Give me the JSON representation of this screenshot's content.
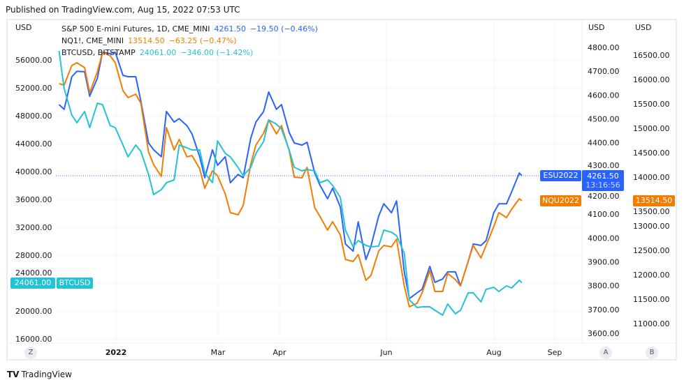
{
  "published": "Published on TradingView.com, Aug 15, 2022 07:53 UTC",
  "axis_units": {
    "left": "USD",
    "middle": "USD",
    "right": "USD"
  },
  "legend": [
    {
      "name": "S&P 500 E-mini Futures, 1D, CME_MINI",
      "price": "4261.50",
      "change": "−19.50 (−0.46%)",
      "color": "#2962ff"
    },
    {
      "name": "NQ1!, CME_MINI",
      "price": "13514.50",
      "change": "−63.25 (−0.47%)",
      "color": "#f57c00"
    },
    {
      "name": "BTCUSD, BITSTAMP",
      "price": "24061.00",
      "change": "−346.00 (−1.42%)",
      "color": "#22c3d6"
    }
  ],
  "price_tags": {
    "es_symbol": "ESU2022",
    "es_price": "4261.50",
    "es_countdown": "13:16:56",
    "nq_symbol": "NQU2022",
    "nq_price": "13514.50",
    "btc_price": "24061.00",
    "btc_symbol": "BTCUSD"
  },
  "scale_buttons": {
    "left": "Z",
    "middle": "A",
    "right": "B"
  },
  "footer": {
    "logo": "17",
    "brand": "TradingView"
  },
  "chart_data": {
    "type": "line",
    "grid": true,
    "legend_position": "top-left",
    "x_ticks": [
      "2022",
      "Mar",
      "Apr",
      "Jun",
      "Aug",
      "Sep"
    ],
    "axes": {
      "left": {
        "series": "BTCUSD",
        "range": [
          14000,
          58000
        ],
        "ticks": [
          "56000.00",
          "52000.00",
          "48000.00",
          "44000.00",
          "40000.00",
          "36000.00",
          "32000.00",
          "28000.00",
          "24000.00",
          "20000.00",
          "16000.00"
        ]
      },
      "middle": {
        "series": "ES",
        "range": [
          3570,
          4830
        ],
        "ticks": [
          "4800.00",
          "4700.00",
          "4600.00",
          "4500.00",
          "4400.00",
          "4300.00",
          "4200.00",
          "4100.00",
          "4000.00",
          "3900.00",
          "3800.00",
          "3700.00",
          "3600.00"
        ]
      },
      "right": {
        "series": "NQ",
        "range": [
          10600,
          16900
        ],
        "ticks": [
          "16500.00",
          "16000.00",
          "15500.00",
          "15000.00",
          "14500.00",
          "14000.00",
          "13500.00",
          "13000.00",
          "12500.00",
          "12000.00",
          "11500.00",
          "11000.00"
        ]
      }
    },
    "x": [
      "2021-12-02",
      "2021-12-06",
      "2021-12-09",
      "2021-12-13",
      "2021-12-16",
      "2021-12-20",
      "2021-12-23",
      "2021-12-27",
      "2021-12-30",
      "2022-01-03",
      "2022-01-06",
      "2022-01-10",
      "2022-01-13",
      "2022-01-17",
      "2022-01-20",
      "2022-01-24",
      "2022-01-27",
      "2022-01-31",
      "2022-02-03",
      "2022-02-07",
      "2022-02-10",
      "2022-02-14",
      "2022-02-17",
      "2022-02-21",
      "2022-02-24",
      "2022-02-28",
      "2022-03-03",
      "2022-03-07",
      "2022-03-10",
      "2022-03-14",
      "2022-03-17",
      "2022-03-21",
      "2022-03-24",
      "2022-03-28",
      "2022-03-31",
      "2022-04-04",
      "2022-04-07",
      "2022-04-11",
      "2022-04-14",
      "2022-04-18",
      "2022-04-21",
      "2022-04-25",
      "2022-04-28",
      "2022-05-02",
      "2022-05-05",
      "2022-05-09",
      "2022-05-12",
      "2022-05-16",
      "2022-05-19",
      "2022-05-23",
      "2022-05-26",
      "2022-05-30",
      "2022-06-02",
      "2022-06-06",
      "2022-06-09",
      "2022-06-13",
      "2022-06-16",
      "2022-06-20",
      "2022-06-23",
      "2022-06-27",
      "2022-06-30",
      "2022-07-04",
      "2022-07-07",
      "2022-07-11",
      "2022-07-14",
      "2022-07-18",
      "2022-07-21",
      "2022-07-25",
      "2022-07-28",
      "2022-08-01",
      "2022-08-04",
      "2022-08-08",
      "2022-08-11",
      "2022-08-12"
    ],
    "series": [
      {
        "name": "ESU2022",
        "axis": "middle",
        "color": "#2962ff",
        "values": [
          4560,
          4540,
          4677,
          4700,
          4698,
          4595,
          4671,
          4780,
          4774,
          4780,
          4683,
          4677,
          4677,
          4575,
          4399,
          4370,
          4341,
          4531,
          4487,
          4501,
          4472,
          4437,
          4341,
          4253,
          4370,
          4305,
          4341,
          4232,
          4267,
          4253,
          4420,
          4487,
          4531,
          4613,
          4540,
          4560,
          4443,
          4399,
          4390,
          4402,
          4273,
          4223,
          4165,
          4209,
          4130,
          3975,
          3945,
          4068,
          3910,
          3966,
          4092,
          4144,
          4106,
          4156,
          3858,
          3746,
          3770,
          3785,
          3881,
          3814,
          3828,
          3858,
          3858,
          3799,
          3902,
          3975,
          3969,
          3989,
          4106,
          4144,
          4144,
          4194,
          4273,
          4261.5
        ]
      },
      {
        "name": "NQU2022",
        "axis": "right",
        "color": "#f57c00",
        "values": [
          15914,
          15886,
          16286,
          16343,
          16243,
          15729,
          16157,
          16557,
          16486,
          16343,
          15771,
          15629,
          15700,
          15514,
          14514,
          14257,
          14014,
          15014,
          14557,
          14771,
          14414,
          14443,
          14171,
          13771,
          14129,
          14029,
          13657,
          13271,
          13229,
          13414,
          14271,
          14657,
          14900,
          15171,
          14886,
          15057,
          14543,
          14000,
          13986,
          14200,
          13371,
          13200,
          12914,
          13086,
          12814,
          12314,
          12271,
          12414,
          11886,
          11986,
          12486,
          12600,
          12571,
          12729,
          11771,
          11343,
          11414,
          11629,
          12086,
          11657,
          11657,
          12029,
          11900,
          11771,
          12271,
          12600,
          12343,
          12600,
          12986,
          13271,
          13171,
          13343,
          13557,
          13514.5
        ]
      },
      {
        "name": "BTCUSD",
        "axis": "left",
        "color": "#22c3d6",
        "values": [
          57300,
          51900,
          48100,
          47000,
          48600,
          46300,
          49800,
          49600,
          46600,
          46300,
          43800,
          42100,
          43800,
          42900,
          39600,
          36700,
          37400,
          38400,
          38800,
          43800,
          43400,
          43100,
          43100,
          39800,
          38400,
          44400,
          42600,
          42100,
          40600,
          39400,
          40600,
          42600,
          44300,
          47400,
          46800,
          46100,
          43100,
          40600,
          40100,
          40300,
          40100,
          38400,
          38800,
          38000,
          36300,
          31600,
          29200,
          30100,
          29400,
          29200,
          29300,
          31600,
          31300,
          30800,
          28300,
          21600,
          20500,
          20600,
          20600,
          20100,
          19400,
          21000,
          19600,
          20100,
          22600,
          22600,
          21300,
          23100,
          23400,
          22800,
          23600,
          23300,
          24400,
          24061
        ]
      }
    ],
    "current_price_line": {
      "series": "ESU2022",
      "value": 4261.5
    }
  }
}
